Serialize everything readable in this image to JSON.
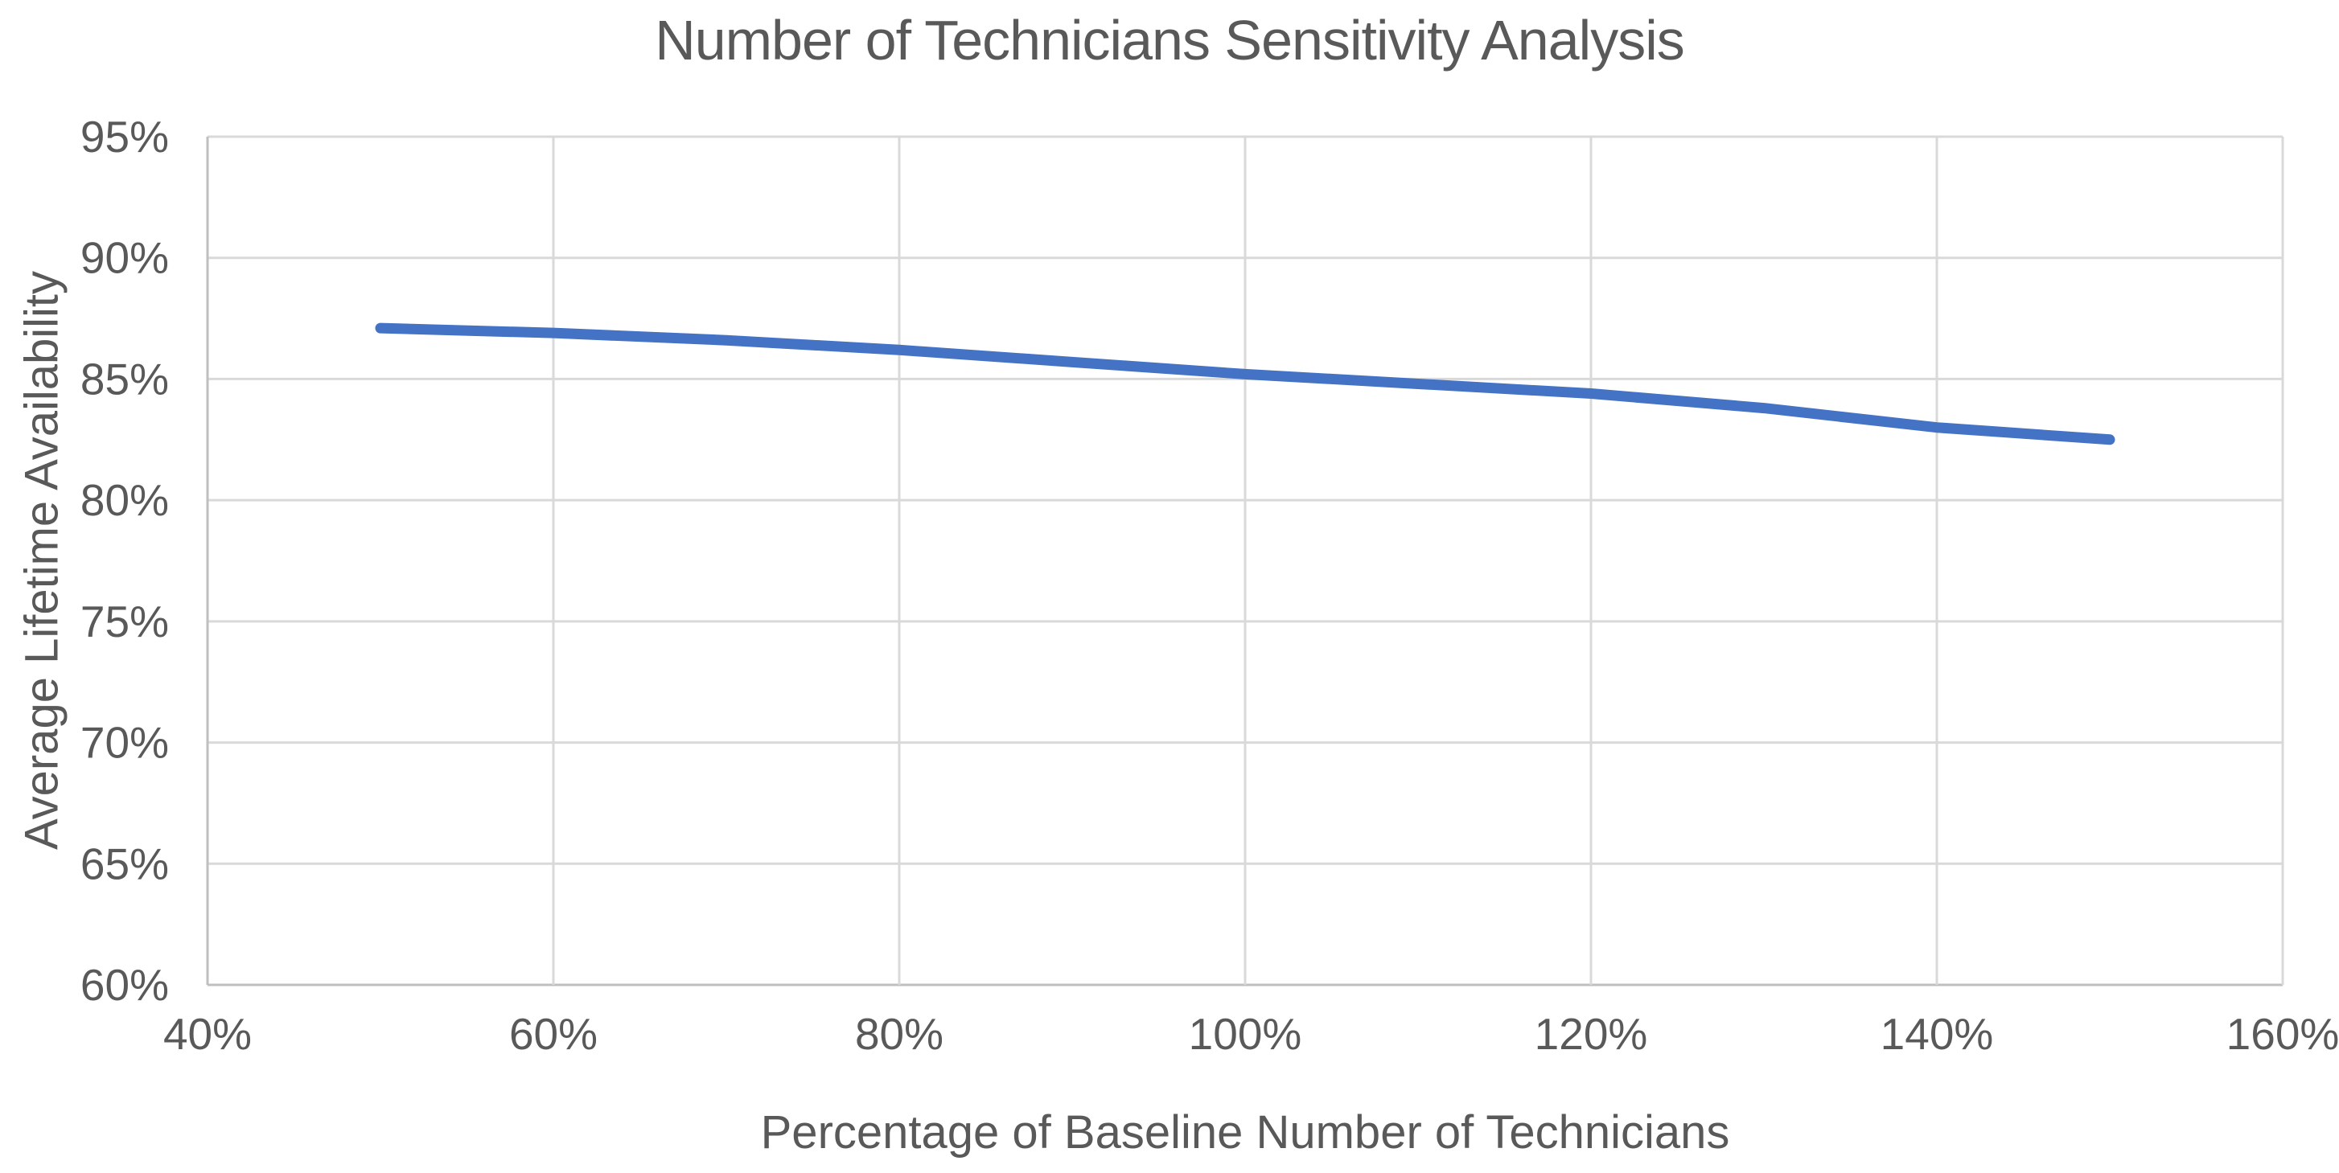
{
  "chart": {
    "title": "Number of Technicians Sensitivity Analysis"
  },
  "chart_data": {
    "type": "line",
    "title": "Number of Technicians Sensitivity Analysis",
    "xlabel": "Percentage of Baseline Number of Technicians",
    "ylabel": "Average Lifetime Availability",
    "x": [
      50,
      60,
      70,
      80,
      90,
      100,
      110,
      120,
      130,
      140,
      150
    ],
    "series": [
      {
        "name": "Average Lifetime Availability",
        "values": [
          87.1,
          86.9,
          86.6,
          86.2,
          85.7,
          85.2,
          84.8,
          84.4,
          83.8,
          83.0,
          82.5
        ]
      }
    ],
    "xlim": [
      40,
      160
    ],
    "ylim": [
      60,
      95
    ],
    "x_tick_values": [
      40,
      60,
      80,
      100,
      120,
      140,
      160
    ],
    "x_tick_labels": [
      "40%",
      "60%",
      "80%",
      "100%",
      "120%",
      "140%",
      "160%"
    ],
    "y_tick_values": [
      60,
      65,
      70,
      75,
      80,
      85,
      90,
      95
    ],
    "y_tick_labels": [
      "60%",
      "65%",
      "70%",
      "75%",
      "80%",
      "85%",
      "90%",
      "95%"
    ],
    "grid": true,
    "legend_position": "none",
    "colors": {
      "line": "#4472C4",
      "gridline": "#D9D9D9",
      "axis_line": "#BFBFBF",
      "text": "#595959",
      "background": "#FFFFFF"
    }
  }
}
